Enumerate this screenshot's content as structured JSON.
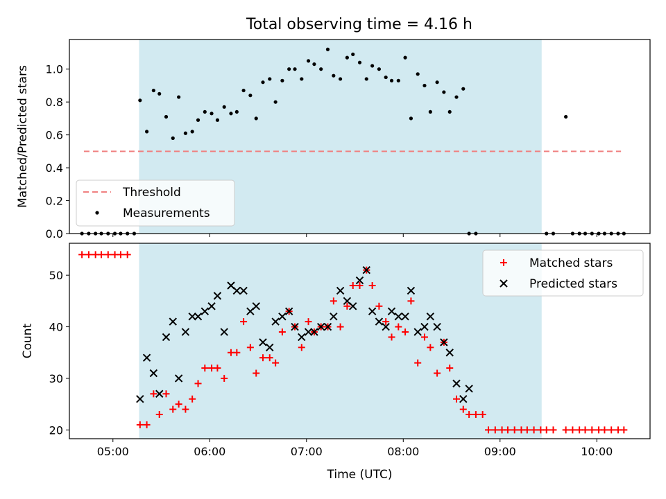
{
  "figure": {
    "title": "Total observing time = 4.16 h"
  },
  "colors": {
    "shade": "#add8e6",
    "threshold": "#f08080",
    "measurement": "#000000",
    "matched": "#ff0000",
    "predicted": "#000000"
  },
  "chart_data": [
    {
      "type": "scatter",
      "ylabel": "Matched/Predicted stars",
      "ylim": [
        0,
        1.18
      ],
      "xlim": [
        4.55,
        10.55
      ],
      "yticks": [
        0.0,
        0.2,
        0.4,
        0.6,
        0.8,
        1.0
      ],
      "ytick_labels": [
        "0.0",
        "0.2",
        "0.4",
        "0.6",
        "0.8",
        "1.0"
      ],
      "shaded_region": [
        5.27,
        9.43
      ],
      "threshold": {
        "name": "Threshold",
        "y": 0.5,
        "x": [
          4.7,
          10.25
        ]
      },
      "legend": {
        "position": "lower left",
        "entries": [
          "Threshold",
          "Measurements"
        ]
      },
      "series": [
        {
          "name": "Measurements",
          "x": [
            4.68,
            4.75,
            4.82,
            4.88,
            4.95,
            5.02,
            5.08,
            5.15,
            5.22,
            5.28,
            5.35,
            5.42,
            5.48,
            5.55,
            5.62,
            5.68,
            5.75,
            5.82,
            5.88,
            5.95,
            6.02,
            6.08,
            6.15,
            6.22,
            6.28,
            6.35,
            6.42,
            6.48,
            6.55,
            6.62,
            6.68,
            6.75,
            6.82,
            6.88,
            6.95,
            7.02,
            7.08,
            7.15,
            7.22,
            7.28,
            7.35,
            7.42,
            7.48,
            7.55,
            7.62,
            7.68,
            7.75,
            7.82,
            7.88,
            7.95,
            8.02,
            8.08,
            8.15,
            8.22,
            8.28,
            8.35,
            8.42,
            8.48,
            8.55,
            8.62,
            8.68,
            8.75,
            8.82,
            8.88,
            8.95,
            9.02,
            9.08,
            9.15,
            9.22,
            9.28,
            9.35,
            9.42,
            9.48,
            9.55,
            9.62,
            9.68,
            9.75,
            9.82,
            9.88,
            9.95,
            10.02,
            10.08,
            10.15,
            10.22,
            10.28
          ],
          "y": [
            0,
            0,
            0,
            0,
            0,
            0,
            0,
            0,
            0,
            0.81,
            0.62,
            0.87,
            0.85,
            0.71,
            0.58,
            0.83,
            0.61,
            0.62,
            0.69,
            0.74,
            0.73,
            0.69,
            0.77,
            0.73,
            0.74,
            0.87,
            0.84,
            0.7,
            0.92,
            0.94,
            0.8,
            0.93,
            1.0,
            1.0,
            0.94,
            1.05,
            1.03,
            1.0,
            1.12,
            0.96,
            0.94,
            1.07,
            1.09,
            1.04,
            0.94,
            1.02,
            1.0,
            0.95,
            0.93,
            0.93,
            1.07,
            0.7,
            0.97,
            0.9,
            0.74,
            0.92,
            0.86,
            0.74,
            0.83,
            0.88,
            0,
            0,
            null,
            null,
            null,
            null,
            null,
            null,
            null,
            null,
            null,
            null,
            0,
            0,
            null,
            0.71,
            0,
            0,
            0,
            0,
            0,
            0,
            0,
            0,
            0
          ]
        }
      ]
    },
    {
      "type": "scatter",
      "xlabel": "Time (UTC)",
      "ylabel": "Count",
      "ylim": [
        18.3,
        56.2
      ],
      "xlim": [
        4.55,
        10.55
      ],
      "yticks": [
        20,
        30,
        40,
        50
      ],
      "ytick_labels": [
        "20",
        "30",
        "40",
        "50"
      ],
      "xticks": [
        5,
        6,
        7,
        8,
        9,
        10
      ],
      "xtick_labels": [
        "05:00",
        "06:00",
        "07:00",
        "08:00",
        "09:00",
        "10:00"
      ],
      "shaded_region": [
        5.27,
        9.43
      ],
      "legend": {
        "position": "upper right",
        "entries": [
          "Matched stars",
          "Predicted stars"
        ]
      },
      "series": [
        {
          "name": "Matched stars",
          "x": [
            4.68,
            4.75,
            4.82,
            4.88,
            4.95,
            5.02,
            5.08,
            5.15,
            5.28,
            5.35,
            5.42,
            5.48,
            5.55,
            5.62,
            5.68,
            5.75,
            5.82,
            5.88,
            5.95,
            6.02,
            6.08,
            6.15,
            6.22,
            6.28,
            6.35,
            6.42,
            6.48,
            6.55,
            6.62,
            6.68,
            6.75,
            6.82,
            6.88,
            6.95,
            7.02,
            7.08,
            7.15,
            7.22,
            7.28,
            7.35,
            7.42,
            7.48,
            7.55,
            7.62,
            7.68,
            7.75,
            7.82,
            7.88,
            7.95,
            8.02,
            8.08,
            8.15,
            8.22,
            8.28,
            8.35,
            8.42,
            8.48,
            8.55,
            8.62,
            8.68,
            8.75,
            8.82,
            8.88,
            8.95,
            9.02,
            9.08,
            9.15,
            9.22,
            9.28,
            9.35,
            9.42,
            9.48,
            9.55,
            9.68,
            9.75,
            9.82,
            9.88,
            9.95,
            10.02,
            10.08,
            10.15,
            10.22,
            10.28
          ],
          "y": [
            54,
            54,
            54,
            54,
            54,
            54,
            54,
            54,
            21,
            21,
            27,
            23,
            27,
            24,
            25,
            24,
            26,
            29,
            32,
            32,
            32,
            30,
            35,
            35,
            41,
            36,
            31,
            34,
            34,
            33,
            39,
            43,
            40,
            36,
            41,
            39,
            40,
            40,
            45,
            40,
            44,
            48,
            48,
            51,
            48,
            44,
            41,
            38,
            40,
            39,
            45,
            33,
            38,
            36,
            31,
            37,
            32,
            26,
            24,
            23,
            23,
            23,
            20,
            20,
            20,
            20,
            20,
            20,
            20,
            20,
            20,
            20,
            20,
            20,
            20,
            20,
            20,
            20,
            20,
            20,
            20,
            20,
            20
          ]
        },
        {
          "name": "Predicted stars",
          "x": [
            5.28,
            5.35,
            5.42,
            5.48,
            5.55,
            5.62,
            5.68,
            5.75,
            5.82,
            5.88,
            5.95,
            6.02,
            6.08,
            6.15,
            6.22,
            6.28,
            6.35,
            6.42,
            6.48,
            6.55,
            6.62,
            6.68,
            6.75,
            6.82,
            6.88,
            6.95,
            7.02,
            7.08,
            7.15,
            7.22,
            7.28,
            7.35,
            7.42,
            7.48,
            7.55,
            7.62,
            7.68,
            7.75,
            7.82,
            7.88,
            7.95,
            8.02,
            8.08,
            8.15,
            8.22,
            8.28,
            8.35,
            8.42,
            8.48,
            8.55,
            8.62,
            8.68,
            8.75,
            8.82,
            8.88,
            8.95,
            9.02,
            9.08,
            9.15,
            9.22,
            9.28,
            9.35,
            9.42,
            9.48,
            9.68
          ],
          "y": [
            26,
            34,
            31,
            27,
            38,
            41,
            30,
            39,
            42,
            42,
            43,
            44,
            46,
            39,
            48,
            47,
            47,
            43,
            44,
            37,
            36,
            41,
            42,
            43,
            40,
            38,
            39,
            39,
            40,
            40,
            42,
            47,
            45,
            44,
            49,
            51,
            43,
            41,
            40,
            43,
            42,
            42,
            47,
            39,
            40,
            42,
            40,
            37,
            35,
            29,
            26,
            28,
            null,
            null,
            null,
            null,
            null,
            null,
            null,
            null,
            null,
            null,
            null,
            null,
            null
          ]
        }
      ]
    }
  ]
}
